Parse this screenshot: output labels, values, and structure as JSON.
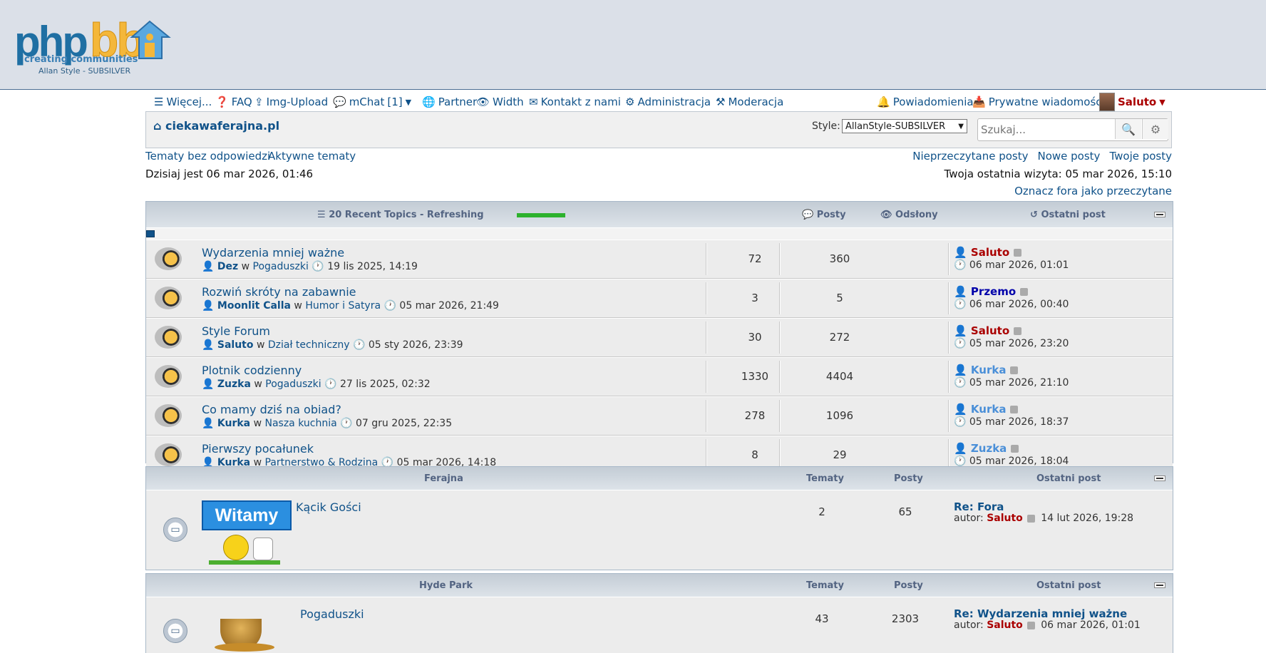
{
  "logo": {
    "php": "php",
    "bb": "bb",
    "tagline": "creating communities",
    "style": "Allan Style - SUBSILVER"
  },
  "navbar": {
    "more": "Więcej...",
    "faq": "FAQ",
    "img_upload": "Img-Upload",
    "mchat": "mChat",
    "mchat_count": "[1]",
    "partner": "Partner",
    "width": "Width",
    "contact": "Kontakt z nami",
    "admin": "Administracja",
    "mod": "Moderacja",
    "notifications": "Powiadomienia",
    "pm": "Prywatne wiadomości",
    "user": "Saluto"
  },
  "subbar": {
    "home": "ciekawaferajna.pl",
    "style_label": "Style:",
    "style_value": "AllanStyle-SUBSILVER",
    "search_placeholder": "Szukaj..."
  },
  "links": {
    "unanswered": "Tematy bez odpowiedzi",
    "active": "Aktywne tematy",
    "unread": "Nieprzeczytane posty",
    "new": "Nowe posty",
    "yours": "Twoje posty",
    "today": "Dzisiaj jest 06 mar 2026, 01:46",
    "last_visit": "Twoja ostatnia wizyta: 05 mar 2026, 15:10",
    "mark_read": "Oznacz fora jako przeczytane"
  },
  "recent": {
    "title": "20 Recent Topics - Refreshing",
    "col_posts": "Posty",
    "col_views": "Odsłony",
    "col_last": "Ostatni post",
    "in": "w",
    "rows": [
      {
        "title": "Wydarzenia mniej ważne",
        "author": "Dez",
        "forum": "Pogaduszki",
        "date": "19 lis 2025, 14:19",
        "posts": "72",
        "views": "360",
        "last_user": "Saluto",
        "last_date": "06 mar 2026, 01:01"
      },
      {
        "title": "Rozwiń skróty na zabawnie",
        "author": "Moonlit Calla",
        "forum": "Humor i Satyra",
        "date": "05 mar 2026, 21:49",
        "posts": "3",
        "views": "5",
        "last_user": "Przemo",
        "last_date": "06 mar 2026, 00:40"
      },
      {
        "title": "Style Forum",
        "author": "Saluto",
        "forum": "Dział techniczny",
        "date": "05 sty 2026, 23:39",
        "posts": "30",
        "views": "272",
        "last_user": "Saluto",
        "last_date": "05 mar 2026, 23:20"
      },
      {
        "title": "Plotnik codzienny",
        "author": "Zuzka",
        "forum": "Pogaduszki",
        "date": "27 lis 2025, 02:32",
        "posts": "1330",
        "views": "4404",
        "last_user": "Kurka",
        "last_date": "05 mar 2026, 21:10"
      },
      {
        "title": "Co mamy dziś na obiad?",
        "author": "Kurka",
        "forum": "Nasza kuchnia",
        "date": "07 gru 2025, 22:35",
        "posts": "278",
        "views": "1096",
        "last_user": "Kurka",
        "last_date": "05 mar 2026, 18:37"
      },
      {
        "title": "Pierwszy pocałunek",
        "author": "Kurka",
        "forum": "Partnerstwo & Rodzina",
        "date": "05 mar 2026, 14:18",
        "posts": "8",
        "views": "29",
        "last_user": "Zuzka",
        "last_date": "05 mar 2026, 18:04"
      }
    ]
  },
  "ferajna": {
    "title": "Ferajna",
    "col_topics": "Tematy",
    "col_posts": "Posty",
    "col_last": "Ostatni post",
    "forum_name": "Kącik Gości",
    "banner": "Witamy",
    "topics": "2",
    "posts": "65",
    "last_title": "Re: Fora",
    "author_label": "autor:",
    "last_user": "Saluto",
    "last_date": "14 lut 2026, 19:28"
  },
  "hydepark": {
    "title": "Hyde Park",
    "col_topics": "Tematy",
    "col_posts": "Posty",
    "col_last": "Ostatni post",
    "forum_name": "Pogaduszki",
    "topics": "43",
    "posts": "2303",
    "last_title": "Re: Wydarzenia mniej ważne",
    "author_label": "autor:",
    "last_user": "Saluto",
    "last_date": "06 mar 2026, 01:01"
  }
}
